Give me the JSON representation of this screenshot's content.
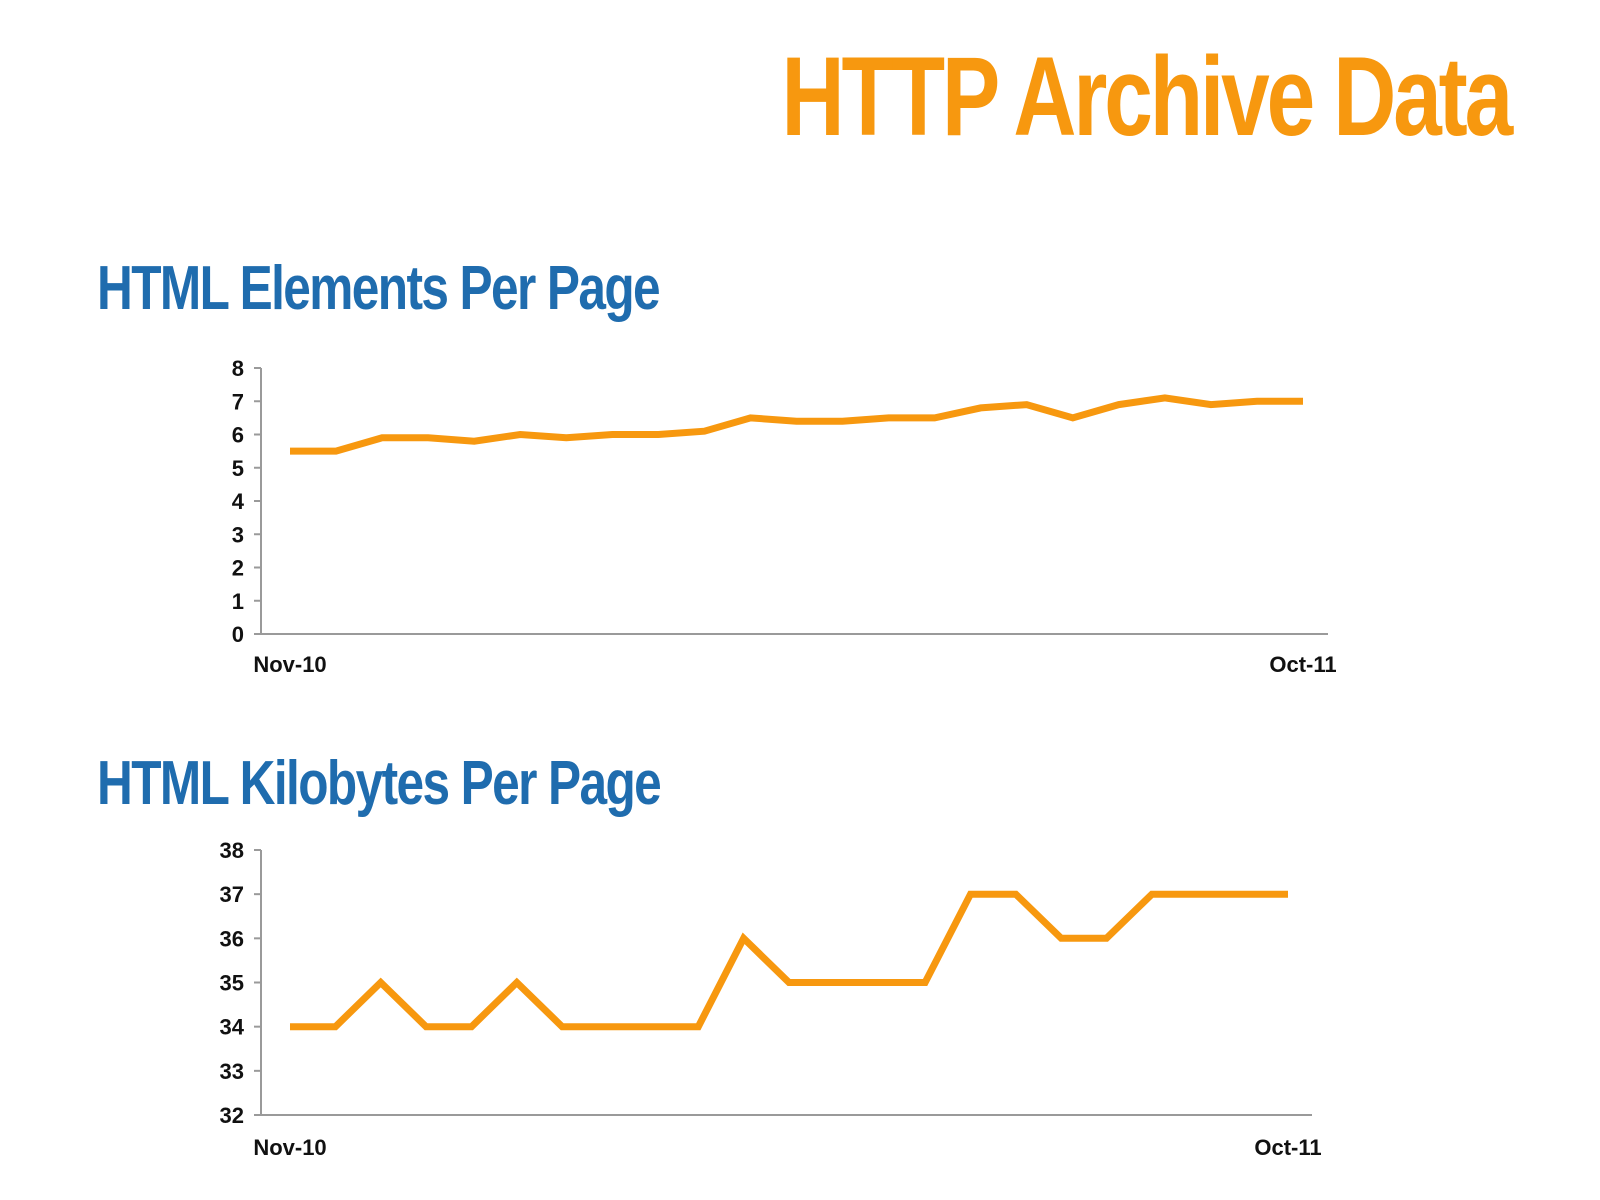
{
  "title": "HTTP Archive Data",
  "colors": {
    "title": "#f7980f",
    "section_title": "#1f6cae",
    "line": "#f7980f",
    "axis": "#9a9a9a"
  },
  "chart_data": [
    {
      "type": "line",
      "title": "HTML Elements Per Page",
      "xlabel": "",
      "ylabel": "",
      "x_tick_labels": [
        "Nov-10",
        "Oct-11"
      ],
      "y_ticks": [
        "0",
        "1",
        "2",
        "3",
        "4",
        "5",
        "6",
        "7",
        "8"
      ],
      "ylim": [
        0,
        8
      ],
      "grid": false,
      "legend": "none",
      "series": [
        {
          "values": [
            5.5,
            5.5,
            5.9,
            5.9,
            5.8,
            6.0,
            5.9,
            6.0,
            6.0,
            6.1,
            6.5,
            6.4,
            6.4,
            6.5,
            6.5,
            6.8,
            6.9,
            6.5,
            6.9,
            7.1,
            6.9,
            7.0,
            7.0
          ]
        }
      ]
    },
    {
      "type": "line",
      "title": "HTML Kilobytes Per Page",
      "xlabel": "",
      "ylabel": "",
      "x_tick_labels": [
        "Nov-10",
        "Oct-11"
      ],
      "y_ticks": [
        "32",
        "33",
        "34",
        "35",
        "36",
        "37",
        "38"
      ],
      "ylim": [
        32,
        38
      ],
      "grid": false,
      "legend": "none",
      "series": [
        {
          "values": [
            34,
            34,
            35,
            34,
            34,
            35,
            34,
            34,
            34,
            34,
            36,
            35,
            35,
            35,
            35,
            37,
            37,
            36,
            36,
            37,
            37,
            37,
            37
          ]
        }
      ]
    }
  ]
}
